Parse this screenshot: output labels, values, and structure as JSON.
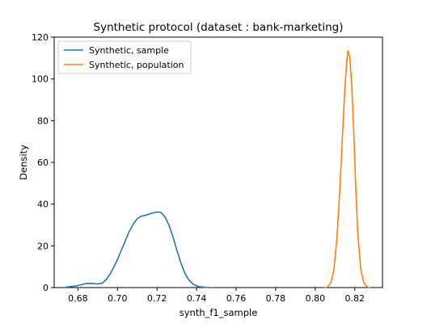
{
  "chart_data": {
    "type": "line",
    "title": "Synthetic protocol (dataset : bank-marketing)",
    "xlabel": "synth_f1_sample",
    "ylabel": "Density",
    "xlim": [
      0.668,
      0.834
    ],
    "ylim": [
      0,
      120
    ],
    "xticks": [
      "0.68",
      "0.70",
      "0.72",
      "0.74",
      "0.76",
      "0.78",
      "0.80",
      "0.82"
    ],
    "xtick_values": [
      0.68,
      0.7,
      0.72,
      0.74,
      0.76,
      0.78,
      0.8,
      0.82
    ],
    "yticks": [
      "0",
      "20",
      "40",
      "60",
      "80",
      "100",
      "120"
    ],
    "ytick_values": [
      0,
      20,
      40,
      60,
      80,
      100,
      120
    ],
    "grid": false,
    "legend_position": "top-left",
    "series": [
      {
        "name": "Synthetic, sample",
        "color": "#1f77b4",
        "x": [
          0.674,
          0.678,
          0.681,
          0.684,
          0.687,
          0.69,
          0.692,
          0.694,
          0.696,
          0.698,
          0.7,
          0.702,
          0.704,
          0.706,
          0.708,
          0.71,
          0.712,
          0.714,
          0.716,
          0.718,
          0.72,
          0.722,
          0.724,
          0.726,
          0.728,
          0.73,
          0.732,
          0.734,
          0.736,
          0.738,
          0.74,
          0.742,
          0.745,
          0.748
        ],
        "y": [
          0.2,
          0.6,
          1.2,
          1.9,
          2.0,
          1.7,
          2.0,
          3.5,
          6.0,
          9.5,
          13.5,
          18.0,
          22.5,
          27.0,
          30.5,
          33.0,
          34.2,
          34.6,
          35.2,
          35.8,
          36.2,
          36.0,
          34.0,
          30.0,
          24.5,
          18.0,
          12.0,
          7.0,
          3.8,
          1.8,
          0.8,
          0.3,
          0.1,
          0.0
        ]
      },
      {
        "name": "Synthetic, population",
        "color": "#ff7f0e",
        "x": [
          0.805,
          0.8065,
          0.808,
          0.8095,
          0.811,
          0.8125,
          0.814,
          0.815,
          0.816,
          0.8167,
          0.8175,
          0.8185,
          0.8195,
          0.8205,
          0.8215,
          0.823,
          0.8245,
          0.826,
          0.8275
        ],
        "y": [
          0.0,
          0.5,
          2.5,
          9.0,
          24.0,
          48.0,
          77.0,
          96.0,
          109.0,
          113.5,
          110.0,
          96.0,
          74.0,
          48.0,
          26.0,
          9.0,
          2.5,
          0.5,
          0.0
        ]
      }
    ]
  }
}
